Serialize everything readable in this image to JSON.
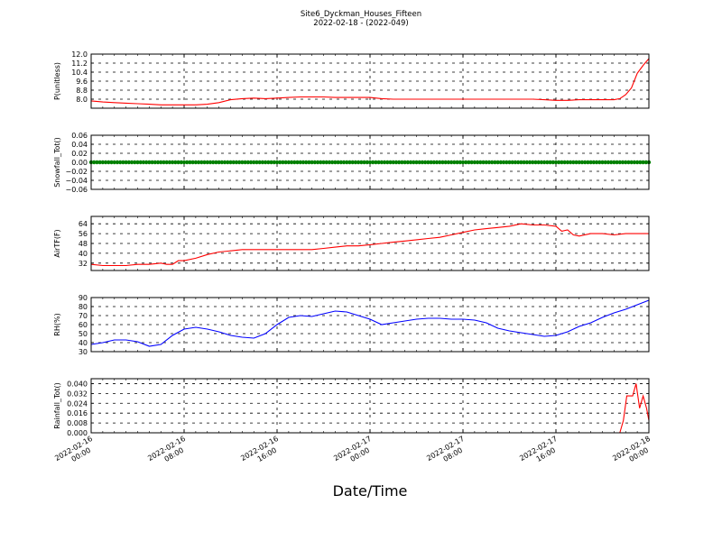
{
  "figure": {
    "title": "Site6_Dyckman_Houses_Fifteen",
    "subtitle": "2022-02-18 - (2022-049)",
    "xlabel": "Date/Time",
    "x_ticks": [
      "2022-02-16\n00:00",
      "2022-02-16\n08:00",
      "2022-02-16\n16:00",
      "2022-02-17\n00:00",
      "2022-02-17\n08:00",
      "2022-02-17\n16:00",
      "2022-02-18\n00:00"
    ],
    "x_range_hours": [
      0,
      48
    ]
  },
  "chart_data": [
    {
      "type": "line",
      "ylabel": "P(unitless)",
      "color": "#ff0000",
      "ylim": [
        7.2,
        12.0
      ],
      "yticks": [
        "12.0",
        "11.2",
        "10.4",
        "9.6",
        "8.8",
        "8.0"
      ],
      "ytick_values": [
        12.0,
        11.2,
        10.4,
        9.6,
        8.8,
        8.0
      ],
      "x": [
        0,
        1,
        2,
        3,
        4,
        5,
        6,
        7,
        8,
        9,
        10,
        11,
        12,
        13,
        14,
        15,
        16,
        17,
        18,
        19,
        20,
        21,
        22,
        23,
        24,
        25,
        26,
        27,
        28,
        29,
        30,
        31,
        32,
        33,
        34,
        35,
        36,
        37,
        38,
        39,
        40,
        41,
        42,
        43,
        44,
        45,
        45.5,
        46,
        46.5,
        47,
        47.5,
        48
      ],
      "y": [
        7.85,
        7.75,
        7.7,
        7.65,
        7.6,
        7.55,
        7.5,
        7.5,
        7.5,
        7.5,
        7.55,
        7.7,
        7.95,
        8.05,
        8.1,
        8.05,
        8.1,
        8.15,
        8.2,
        8.2,
        8.2,
        8.15,
        8.15,
        8.15,
        8.15,
        8.05,
        8.0,
        8.0,
        8.0,
        8.0,
        8.0,
        8.0,
        8.0,
        8.0,
        8.0,
        8.0,
        8.0,
        8.0,
        8.0,
        7.95,
        7.9,
        7.9,
        7.95,
        7.95,
        7.95,
        7.95,
        8.05,
        8.4,
        9.0,
        10.3,
        11.0,
        11.6
      ]
    },
    {
      "type": "line",
      "ylabel": "Snowfall_Tot()",
      "color": "#008000",
      "marker": "dot",
      "ylim": [
        -0.06,
        0.06
      ],
      "yticks": [
        "0.06",
        "0.04",
        "0.02",
        "0.00",
        "−0.02",
        "−0.04",
        "−0.06"
      ],
      "ytick_values": [
        0.06,
        0.04,
        0.02,
        0.0,
        -0.02,
        -0.04,
        -0.06
      ],
      "x": [
        0,
        48
      ],
      "y": [
        0.0,
        0.0
      ]
    },
    {
      "type": "line",
      "ylabel": "AirTF(F)",
      "color": "#ff0000",
      "ylim": [
        26,
        70
      ],
      "yticks": [
        "64",
        "56",
        "48",
        "40",
        "32"
      ],
      "ytick_values": [
        64,
        56,
        48,
        40,
        32
      ],
      "x": [
        0,
        1,
        2,
        3,
        4,
        5,
        6,
        6.5,
        7,
        7.5,
        8,
        9,
        10,
        11,
        12,
        13,
        14,
        15,
        16,
        17,
        18,
        19,
        20,
        21,
        22,
        23,
        24,
        25,
        26,
        27,
        28,
        29,
        30,
        31,
        32,
        33,
        34,
        35,
        36,
        37,
        38,
        39,
        40,
        40.5,
        41,
        41.5,
        42,
        43,
        44,
        45,
        46,
        47,
        48
      ],
      "y": [
        31,
        30,
        30,
        30,
        31,
        31,
        32,
        31,
        31,
        34,
        34,
        36,
        39,
        41,
        42,
        43,
        43,
        43,
        43,
        43,
        43,
        43,
        44,
        45,
        46,
        46,
        47,
        48,
        49,
        50,
        51,
        52,
        53,
        55,
        57,
        59,
        60,
        61,
        62,
        64,
        63,
        63,
        62,
        58,
        59,
        55,
        54,
        56,
        56,
        55,
        56,
        56,
        56
      ]
    },
    {
      "type": "line",
      "ylabel": "RH(%)",
      "color": "#0000ff",
      "ylim": [
        30,
        90
      ],
      "yticks": [
        "90",
        "80",
        "70",
        "60",
        "50",
        "40",
        "30"
      ],
      "ytick_values": [
        90,
        80,
        70,
        60,
        50,
        40,
        30
      ],
      "x": [
        0,
        1,
        2,
        3,
        4,
        5,
        6,
        7,
        8,
        9,
        10,
        11,
        12,
        13,
        14,
        15,
        16,
        17,
        18,
        19,
        20,
        21,
        22,
        23,
        24,
        25,
        26,
        27,
        28,
        29,
        30,
        31,
        32,
        33,
        34,
        35,
        36,
        37,
        38,
        39,
        40,
        41,
        42,
        43,
        44,
        45,
        46,
        47,
        48
      ],
      "y": [
        38,
        40,
        43,
        43,
        41,
        36,
        38,
        48,
        55,
        57,
        55,
        52,
        48,
        46,
        45,
        50,
        60,
        68,
        70,
        69,
        72,
        75,
        74,
        70,
        66,
        60,
        62,
        64,
        66,
        67,
        67,
        66,
        66,
        65,
        62,
        56,
        53,
        51,
        49,
        47,
        48,
        52,
        58,
        62,
        68,
        73,
        77,
        82,
        87
      ]
    },
    {
      "type": "line",
      "ylabel": "Rainfall_Tot()",
      "color": "#ff0000",
      "ylim": [
        0.0,
        0.044
      ],
      "yticks": [
        "0.040",
        "0.032",
        "0.024",
        "0.016",
        "0.008",
        "0.000"
      ],
      "ytick_values": [
        0.04,
        0.032,
        0.024,
        0.016,
        0.008,
        0.0
      ],
      "x": [
        0,
        45.5,
        45.8,
        46.1,
        46.6,
        46.9,
        47.2,
        47.5,
        47.8,
        48
      ],
      "y": [
        0.0,
        0.0,
        0.01,
        0.03,
        0.03,
        0.04,
        0.02,
        0.03,
        0.02,
        0.01
      ]
    }
  ]
}
